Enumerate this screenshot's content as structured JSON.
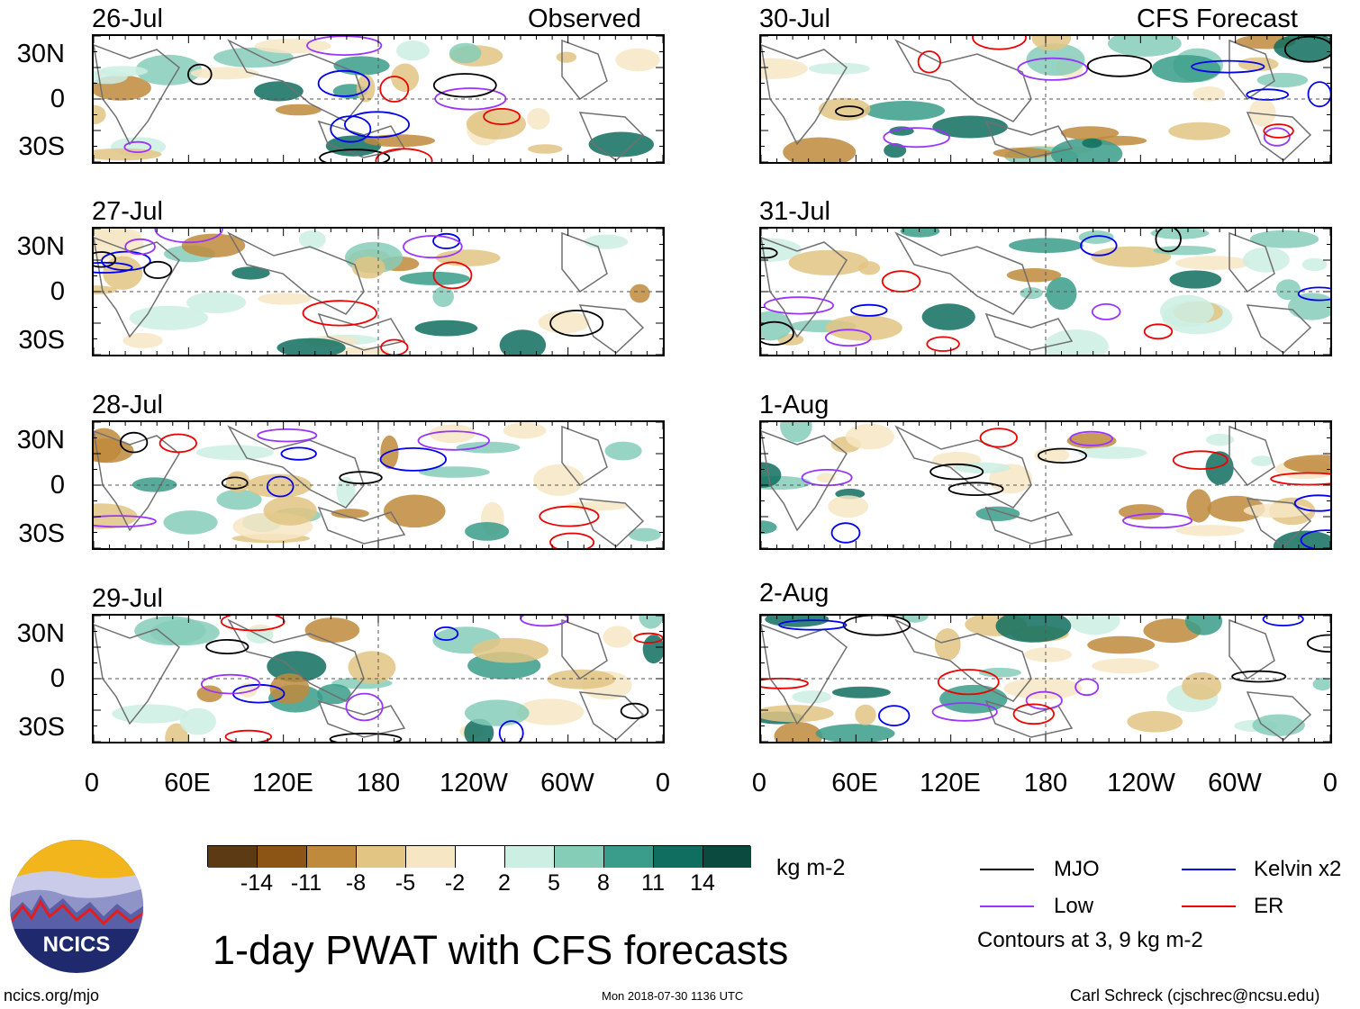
{
  "figure_title": "1-day PWAT with CFS forecasts",
  "site_url": "ncics.org/mjo",
  "timestamp": "Mon 2018-07-30 1136 UTC",
  "author": "Carl Schreck (cjschrec@ncsu.edu)",
  "logo_text": "NCICS",
  "colors": {
    "mjo": "#000000",
    "low": "#9933ff",
    "kelvin": "#0000ee",
    "er": "#ee0000",
    "land": "#707070"
  },
  "chart_data": {
    "type": "map",
    "lon_ticks": [
      "0",
      "60E",
      "120E",
      "180",
      "120W",
      "60W",
      "0"
    ],
    "lat_ticks": [
      "30N",
      "0",
      "30S"
    ],
    "panels": [
      {
        "date": "26-Jul",
        "label": "Observed",
        "column": "left"
      },
      {
        "date": "27-Jul",
        "label": "",
        "column": "left"
      },
      {
        "date": "28-Jul",
        "label": "",
        "column": "left"
      },
      {
        "date": "29-Jul",
        "label": "",
        "column": "left"
      },
      {
        "date": "30-Jul",
        "label": "CFS Forecast",
        "column": "right"
      },
      {
        "date": "31-Jul",
        "label": "",
        "column": "right"
      },
      {
        "date": "1-Aug",
        "label": "",
        "column": "right"
      },
      {
        "date": "2-Aug",
        "label": "",
        "column": "right"
      }
    ],
    "colorbar": {
      "units": "kg m-2",
      "labels": [
        "-14",
        "-11",
        "-8",
        "-5",
        "-2",
        "2",
        "5",
        "8",
        "11",
        "14"
      ],
      "colors": [
        "#5b3a14",
        "#8c5516",
        "#c08a3c",
        "#e2c483",
        "#f6e6c4",
        "#ffffff",
        "#cdeee3",
        "#86cdb8",
        "#3a9c8a",
        "#0f6e5f",
        "#0b4a3e"
      ]
    },
    "legend": [
      {
        "name": "MJO",
        "color": "#000000"
      },
      {
        "name": "Kelvin x2",
        "color": "#0000ee"
      },
      {
        "name": "Low",
        "color": "#9933ff"
      },
      {
        "name": "ER",
        "color": "#ee0000"
      }
    ],
    "contour_note": "Contours at 3, 9 kg m-2"
  }
}
